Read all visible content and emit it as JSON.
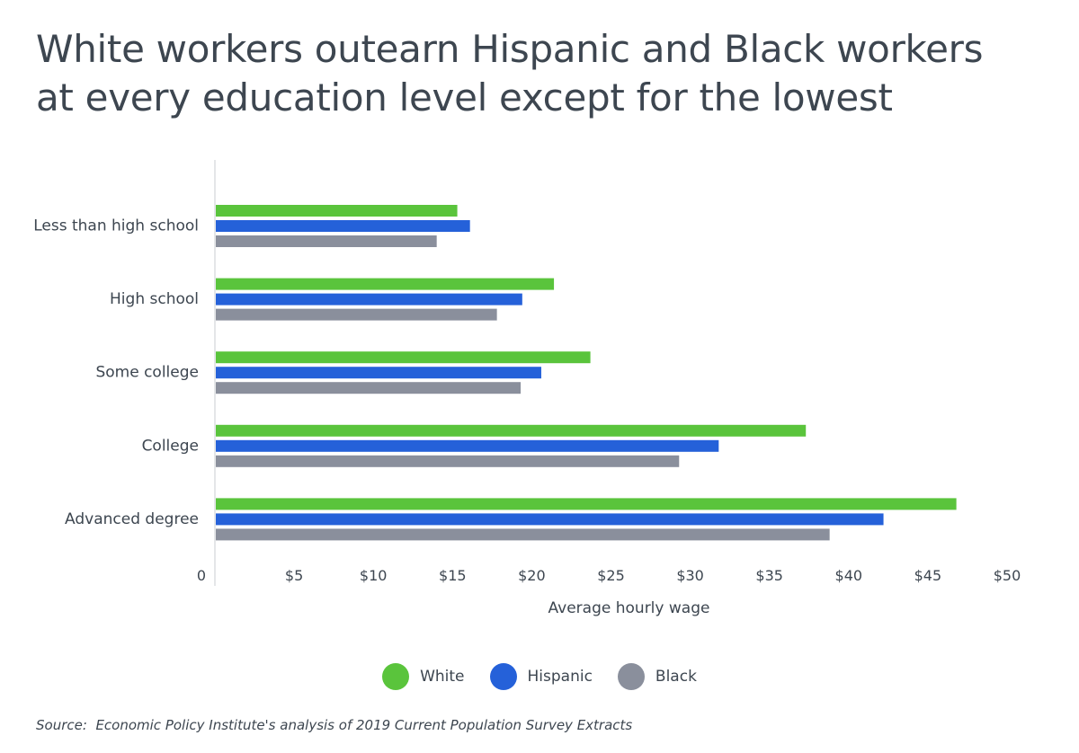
{
  "title_lines": [
    "White workers outearn Hispanic and Black workers",
    "at every education level except for the lowest"
  ],
  "source": "Source:  Economic Policy Institute's analysis of 2019 Current Population Survey Extracts",
  "colors": {
    "White": "#5ac43c",
    "Hispanic": "#2561d9",
    "Black": "#8a8f9c"
  },
  "chart_data": {
    "type": "bar",
    "orientation": "horizontal",
    "categories": [
      "Less than high school",
      "High school",
      "Some college",
      "College",
      "Advanced degree"
    ],
    "series": [
      {
        "name": "White",
        "values": [
          15.3,
          21.4,
          23.7,
          37.3,
          46.8
        ]
      },
      {
        "name": "Hispanic",
        "values": [
          16.1,
          19.4,
          20.6,
          31.8,
          42.2
        ]
      },
      {
        "name": "Black",
        "values": [
          14.0,
          17.8,
          19.3,
          29.3,
          38.8
        ]
      }
    ],
    "xlim": [
      0,
      50
    ],
    "xticks": [
      "0",
      "$5",
      "$10",
      "$15",
      "$20",
      "$25",
      "$30",
      "$35",
      "$40",
      "$45",
      "$50"
    ],
    "xlabel": "Average hourly wage",
    "ylabel": "",
    "grid": false,
    "legend_position": "bottom"
  }
}
